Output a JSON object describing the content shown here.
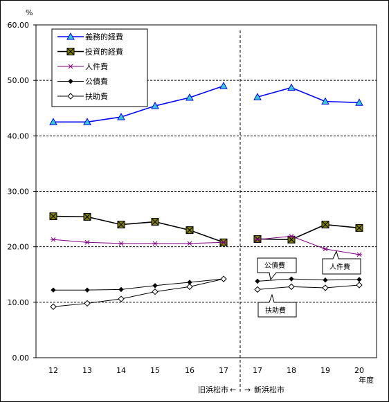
{
  "chart_data": {
    "type": "line",
    "title": "",
    "xlabel": "年度",
    "ylabel": "%",
    "ylim": [
      0,
      60
    ],
    "yticks": [
      "0.00",
      "10.00",
      "20.00",
      "30.00",
      "40.00",
      "50.00",
      "60.00"
    ],
    "grid": "horizontal-dashed",
    "legend_position": "top-left",
    "categories": [
      "12",
      "13",
      "14",
      "15",
      "16",
      "17",
      "17",
      "18",
      "19",
      "20"
    ],
    "divider_note": {
      "left": "旧浜松市",
      "right": "新浜松市",
      "left_arrow": "←",
      "right_arrow": "→"
    },
    "series": [
      {
        "name": "義務的経費",
        "color": "#0000ff",
        "marker": "triangle-cyan",
        "values": [
          42.5,
          42.5,
          43.4,
          45.4,
          46.9,
          49.0,
          47.0,
          48.7,
          46.2,
          46.0
        ]
      },
      {
        "name": "投資的経費",
        "color": "#000000",
        "marker": "square-x-olive",
        "values": [
          25.5,
          25.4,
          24.0,
          24.5,
          23.0,
          20.8,
          21.4,
          21.3,
          24.0,
          23.4
        ]
      },
      {
        "name": "人件費",
        "color": "#800080",
        "marker": "asterisk",
        "values": [
          21.3,
          20.8,
          20.6,
          20.6,
          20.6,
          20.8,
          21.3,
          21.9,
          19.6,
          18.6
        ]
      },
      {
        "name": "公債費",
        "color": "#000000",
        "marker": "diamond-filled",
        "values": [
          12.2,
          12.2,
          12.3,
          13.0,
          13.6,
          14.2,
          13.8,
          14.2,
          14.0,
          14.1
        ]
      },
      {
        "name": "扶助費",
        "color": "#000000",
        "marker": "diamond-open",
        "values": [
          9.2,
          9.8,
          10.6,
          11.9,
          12.8,
          14.2,
          12.3,
          12.8,
          12.6,
          13.1
        ]
      }
    ],
    "callouts": [
      {
        "label": "公債費"
      },
      {
        "label": "人件費"
      },
      {
        "label": "扶助費"
      }
    ]
  }
}
